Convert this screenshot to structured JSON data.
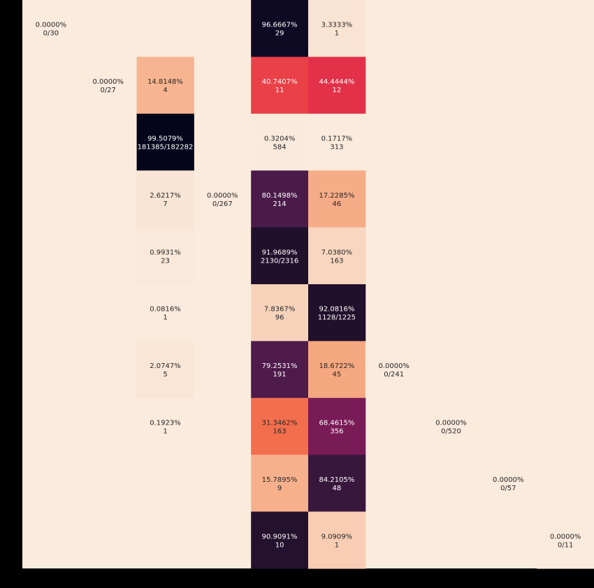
{
  "chart_data": {
    "type": "heatmap",
    "title": "",
    "xlabel": "",
    "ylabel": "",
    "n_rows": 10,
    "n_cols": 10,
    "colorscale": "rocket_r",
    "value_range": [
      0,
      100
    ],
    "grid": false,
    "legend": "none",
    "cells": [
      {
        "row": 0,
        "col": 0,
        "pct": 0.0,
        "label": "0.0000%",
        "count": "0/30"
      },
      {
        "row": 0,
        "col": 4,
        "pct": 96.6667,
        "label": "96.6667%",
        "count": "29"
      },
      {
        "row": 0,
        "col": 5,
        "pct": 3.3333,
        "label": "3.3333%",
        "count": "1"
      },
      {
        "row": 1,
        "col": 1,
        "pct": 0.0,
        "label": "0.0000%",
        "count": "0/27"
      },
      {
        "row": 1,
        "col": 2,
        "pct": 14.8148,
        "label": "14.8148%",
        "count": "4"
      },
      {
        "row": 1,
        "col": 4,
        "pct": 40.7407,
        "label": "40.7407%",
        "count": "11"
      },
      {
        "row": 1,
        "col": 5,
        "pct": 44.4444,
        "label": "44.4444%",
        "count": "12"
      },
      {
        "row": 2,
        "col": 2,
        "pct": 99.5079,
        "label": "99.5079%",
        "count": "181385/182282"
      },
      {
        "row": 2,
        "col": 4,
        "pct": 0.3204,
        "label": "0.3204%",
        "count": "584"
      },
      {
        "row": 2,
        "col": 5,
        "pct": 0.1717,
        "label": "0.1717%",
        "count": "313"
      },
      {
        "row": 3,
        "col": 2,
        "pct": 2.6217,
        "label": "2.6217%",
        "count": "7"
      },
      {
        "row": 3,
        "col": 3,
        "pct": 0.0,
        "label": "0.0000%",
        "count": "0/267"
      },
      {
        "row": 3,
        "col": 4,
        "pct": 80.1498,
        "label": "80.1498%",
        "count": "214"
      },
      {
        "row": 3,
        "col": 5,
        "pct": 17.2285,
        "label": "17.2285%",
        "count": "46"
      },
      {
        "row": 4,
        "col": 2,
        "pct": 0.9931,
        "label": "0.9931%",
        "count": "23"
      },
      {
        "row": 4,
        "col": 4,
        "pct": 91.9689,
        "label": "91.9689%",
        "count": "2130/2316"
      },
      {
        "row": 4,
        "col": 5,
        "pct": 7.038,
        "label": "7.0380%",
        "count": "163"
      },
      {
        "row": 5,
        "col": 2,
        "pct": 0.0816,
        "label": "0.0816%",
        "count": "1"
      },
      {
        "row": 5,
        "col": 4,
        "pct": 7.8367,
        "label": "7.8367%",
        "count": "96"
      },
      {
        "row": 5,
        "col": 5,
        "pct": 92.0816,
        "label": "92.0816%",
        "count": "1128/1225"
      },
      {
        "row": 6,
        "col": 2,
        "pct": 2.0747,
        "label": "2.0747%",
        "count": "5"
      },
      {
        "row": 6,
        "col": 4,
        "pct": 79.2531,
        "label": "79.2531%",
        "count": "191"
      },
      {
        "row": 6,
        "col": 5,
        "pct": 18.6722,
        "label": "18.6722%",
        "count": "45"
      },
      {
        "row": 6,
        "col": 6,
        "pct": 0.0,
        "label": "0.0000%",
        "count": "0/241"
      },
      {
        "row": 7,
        "col": 2,
        "pct": 0.1923,
        "label": "0.1923%",
        "count": "1"
      },
      {
        "row": 7,
        "col": 4,
        "pct": 31.3462,
        "label": "31.3462%",
        "count": "163"
      },
      {
        "row": 7,
        "col": 5,
        "pct": 68.4615,
        "label": "68.4615%",
        "count": "356"
      },
      {
        "row": 7,
        "col": 7,
        "pct": 0.0,
        "label": "0.0000%",
        "count": "0/520"
      },
      {
        "row": 8,
        "col": 4,
        "pct": 15.7895,
        "label": "15.7895%",
        "count": "9"
      },
      {
        "row": 8,
        "col": 5,
        "pct": 84.2105,
        "label": "84.2105%",
        "count": "48"
      },
      {
        "row": 8,
        "col": 8,
        "pct": 0.0,
        "label": "0.0000%",
        "count": "0/57"
      },
      {
        "row": 9,
        "col": 4,
        "pct": 90.9091,
        "label": "90.9091%",
        "count": "10"
      },
      {
        "row": 9,
        "col": 5,
        "pct": 9.0909,
        "label": "9.0909%",
        "count": "1"
      },
      {
        "row": 9,
        "col": 9,
        "pct": 0.0,
        "label": "0.0000%",
        "count": "0/11"
      }
    ]
  }
}
